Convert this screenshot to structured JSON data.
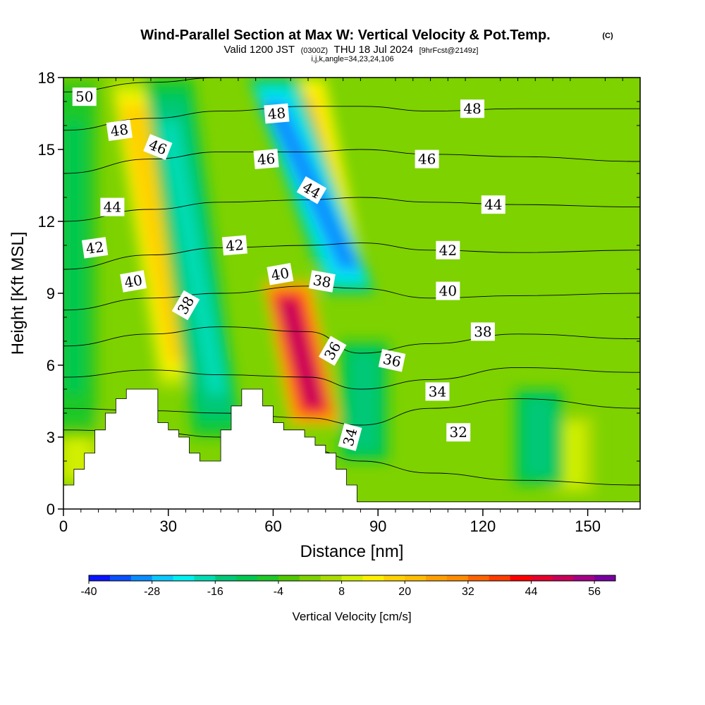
{
  "title": {
    "main": "Wind-Parallel Section at Max W: Vertical Velocity & Pot.Temp.",
    "copyright": "(C)",
    "valid_prefix": "Valid 1200 JST",
    "valid_utc": "(0300Z)",
    "valid_date": "THU 18 Jul 2024",
    "forecast": "[9hrFcst@2149z]",
    "indices": "i,j,k,angle=34,23,24,106"
  },
  "chart_data": {
    "type": "heatmap",
    "xlabel": "Distance [nm]",
    "ylabel": "Height [Kft MSL]",
    "xlim": [
      0,
      165
    ],
    "ylim": [
      0,
      18
    ],
    "xticks": [
      0,
      30,
      60,
      90,
      120,
      150
    ],
    "yticks": [
      0,
      3,
      6,
      9,
      12,
      15,
      18
    ],
    "xtick_labels": [
      "0",
      "30",
      "60",
      "90",
      "120",
      "150"
    ],
    "ytick_labels": [
      "0",
      "3",
      "6",
      "9",
      "12",
      "15",
      "18"
    ],
    "fill_variable": "Vertical Velocity [cm/s]",
    "contour_variable": "Potential Temperature",
    "updraft_bands": [
      {
        "x_bottom": 34,
        "x_top": 20,
        "y_bottom": 5,
        "y_top": 18,
        "value": 22
      },
      {
        "x_bottom": 72,
        "x_top": 64,
        "y_bottom": 3.5,
        "y_top": 9.5,
        "value": 58
      },
      {
        "x_bottom": 80,
        "x_top": 68,
        "y_bottom": 9.5,
        "y_top": 18,
        "value": 26
      },
      {
        "x_bottom": 4,
        "x_top": 4,
        "y_bottom": 1,
        "y_top": 4,
        "value": 12
      },
      {
        "x_bottom": 146,
        "x_top": 146,
        "y_bottom": 0.5,
        "y_top": 4,
        "value": 10
      }
    ],
    "downdraft_bands": [
      {
        "x_bottom": 44,
        "x_top": 30,
        "y_bottom": 3,
        "y_top": 18,
        "value": -20
      },
      {
        "x_bottom": 82,
        "x_top": 60,
        "y_bottom": 9,
        "y_top": 18,
        "value": -36
      },
      {
        "x_bottom": 86,
        "x_top": 86,
        "y_bottom": 2,
        "y_top": 7,
        "value": -18
      },
      {
        "x_bottom": 136,
        "x_top": 136,
        "y_bottom": 1,
        "y_top": 5,
        "value": -18
      },
      {
        "x_bottom": 3,
        "x_top": 3,
        "y_bottom": 3,
        "y_top": 18,
        "value": -10
      }
    ],
    "terrain": {
      "x": [
        0,
        3,
        3,
        6,
        6,
        9,
        9,
        12,
        12,
        15,
        15,
        18,
        18,
        21,
        21,
        27,
        27,
        30,
        30,
        33,
        33,
        36,
        36,
        39,
        39,
        45,
        45,
        48,
        48,
        51,
        51,
        54,
        54,
        57,
        57,
        60,
        60,
        63,
        63,
        69,
        69,
        72,
        72,
        75,
        75,
        78,
        78,
        81,
        81,
        84,
        84,
        165
      ],
      "y": [
        1.0,
        1.0,
        1.66,
        1.66,
        2.33,
        2.33,
        3.3,
        3.3,
        4.0,
        4.0,
        4.6,
        4.6,
        5.0,
        5.0,
        5.0,
        5.0,
        3.6,
        3.6,
        3.3,
        3.3,
        3.0,
        3.0,
        2.33,
        2.33,
        2.0,
        2.0,
        3.3,
        3.3,
        4.3,
        4.3,
        5.0,
        5.0,
        5.0,
        5.0,
        4.3,
        4.3,
        3.6,
        3.6,
        3.3,
        3.3,
        3.0,
        3.0,
        2.66,
        2.66,
        2.33,
        2.33,
        1.66,
        1.66,
        1.0,
        1.0,
        0.3,
        0.3
      ]
    },
    "theta_contours": [
      {
        "level": 32,
        "heights": [
          3.3,
          3.2,
          3.0,
          2.5,
          2.0,
          1.5,
          1.2,
          1.0
        ]
      },
      {
        "level": 34,
        "heights": [
          4.2,
          4.1,
          4.0,
          3.8,
          3.5,
          4.2,
          4.6,
          4.2
        ]
      },
      {
        "level": 36,
        "heights": [
          5.5,
          5.8,
          5.6,
          5.5,
          5.0,
          5.4,
          5.9,
          5.7
        ]
      },
      {
        "level": 38,
        "heights": [
          6.8,
          7.3,
          7.6,
          7.4,
          6.5,
          6.9,
          7.3,
          7.1
        ]
      },
      {
        "level": 40,
        "heights": [
          8.3,
          8.8,
          9.0,
          9.3,
          9.2,
          8.8,
          8.9,
          9.0
        ]
      },
      {
        "level": 42,
        "heights": [
          10.0,
          10.6,
          10.9,
          11.0,
          11.1,
          10.8,
          10.7,
          10.8
        ]
      },
      {
        "level": 44,
        "heights": [
          12.0,
          12.5,
          12.8,
          12.9,
          13.0,
          12.8,
          12.7,
          12.6
        ]
      },
      {
        "level": 46,
        "heights": [
          14.0,
          14.6,
          14.9,
          14.9,
          15.0,
          14.8,
          14.7,
          14.5
        ]
      },
      {
        "level": 48,
        "heights": [
          15.8,
          16.3,
          16.6,
          16.8,
          16.8,
          16.6,
          16.7,
          16.7
        ]
      },
      {
        "level": 50,
        "heights": [
          17.4,
          17.8,
          18.0,
          18.0,
          18.0,
          18.0,
          18.0,
          18.0
        ]
      }
    ],
    "contour_x": [
      0,
      25,
      45,
      70,
      85,
      105,
      130,
      165
    ],
    "contour_labels": [
      {
        "text": "50",
        "x": 6,
        "y": 17.2,
        "angle": 0
      },
      {
        "text": "48",
        "x": 16,
        "y": 15.8,
        "angle": -8
      },
      {
        "text": "46",
        "x": 27,
        "y": 15.1,
        "angle": 22
      },
      {
        "text": "44",
        "x": 14,
        "y": 12.6,
        "angle": 0
      },
      {
        "text": "42",
        "x": 9,
        "y": 10.9,
        "angle": -8
      },
      {
        "text": "40",
        "x": 20,
        "y": 9.5,
        "angle": -10
      },
      {
        "text": "38",
        "x": 35,
        "y": 8.5,
        "angle": -60
      },
      {
        "text": "48",
        "x": 61,
        "y": 16.5,
        "angle": -5
      },
      {
        "text": "46",
        "x": 58,
        "y": 14.6,
        "angle": -5
      },
      {
        "text": "44",
        "x": 71,
        "y": 13.3,
        "angle": 30
      },
      {
        "text": "42",
        "x": 49,
        "y": 11.0,
        "angle": -5
      },
      {
        "text": "40",
        "x": 62,
        "y": 9.8,
        "angle": -10
      },
      {
        "text": "38",
        "x": 74,
        "y": 9.5,
        "angle": 10
      },
      {
        "text": "36",
        "x": 77,
        "y": 6.6,
        "angle": -60
      },
      {
        "text": "36",
        "x": 94,
        "y": 6.2,
        "angle": 12
      },
      {
        "text": "34",
        "x": 82,
        "y": 3.0,
        "angle": -75
      },
      {
        "text": "34",
        "x": 107,
        "y": 4.9,
        "angle": 0
      },
      {
        "text": "32",
        "x": 113,
        "y": 3.2,
        "angle": 0
      },
      {
        "text": "48",
        "x": 117,
        "y": 16.7,
        "angle": 0
      },
      {
        "text": "46",
        "x": 104,
        "y": 14.6,
        "angle": 0
      },
      {
        "text": "44",
        "x": 123,
        "y": 12.7,
        "angle": 0
      },
      {
        "text": "42",
        "x": 110,
        "y": 10.8,
        "angle": 0
      },
      {
        "text": "40",
        "x": 110,
        "y": 9.1,
        "angle": 0
      },
      {
        "text": "38",
        "x": 120,
        "y": 7.4,
        "angle": 0
      }
    ]
  },
  "colorbar": {
    "title": "Vertical Velocity [cm/s]",
    "min": -40,
    "max": 60,
    "step": 4,
    "tick_labels": [
      "-40",
      "-28",
      "-16",
      "-4",
      "8",
      "20",
      "32",
      "44",
      "56"
    ],
    "tick_values": [
      -40,
      -28,
      -16,
      -4,
      8,
      20,
      32,
      44,
      56
    ],
    "colors": [
      "#0a14ff",
      "#0a50ff",
      "#0a8cff",
      "#0ac8ff",
      "#00f0f0",
      "#00dcb4",
      "#00c878",
      "#00c850",
      "#1ec828",
      "#50c800",
      "#7dd200",
      "#aadc00",
      "#d2f000",
      "#fff000",
      "#ffd200",
      "#ffbe00",
      "#ffa000",
      "#ff8c00",
      "#ff6400",
      "#ff3c00",
      "#ff0000",
      "#e6002d",
      "#c8005a",
      "#a50087",
      "#7800a0"
    ]
  }
}
